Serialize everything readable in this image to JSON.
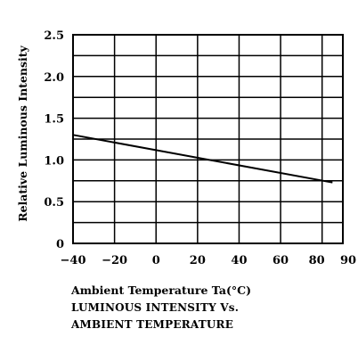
{
  "chart_data": {
    "type": "line",
    "xlabel": "Ambient Temperature Ta(°C)",
    "ylabel": "Relative Luminous Intensity",
    "caption": [
      "LUMINOUS INTENSITY Vs.",
      "AMBIENT TEMPERATURE"
    ],
    "xlim": [
      -40,
      90
    ],
    "ylim": [
      0,
      2.5
    ],
    "x_ticks": [
      -40,
      -20,
      0,
      20,
      40,
      60,
      80,
      90
    ],
    "x_tick_labels": [
      "−40",
      "−20",
      "0",
      "20",
      "40",
      "60",
      "80",
      "90"
    ],
    "y_ticks": [
      0,
      0.5,
      1.0,
      1.5,
      2.0,
      2.5
    ],
    "y_tick_labels": [
      "0",
      "0.5",
      "1.0",
      "1.5",
      "2.0",
      "2.5"
    ],
    "grid": true,
    "legend": "none",
    "series": [
      {
        "x": [
          -40,
          85
        ],
        "y": [
          1.3,
          0.73
        ],
        "color": "#000000"
      }
    ]
  }
}
